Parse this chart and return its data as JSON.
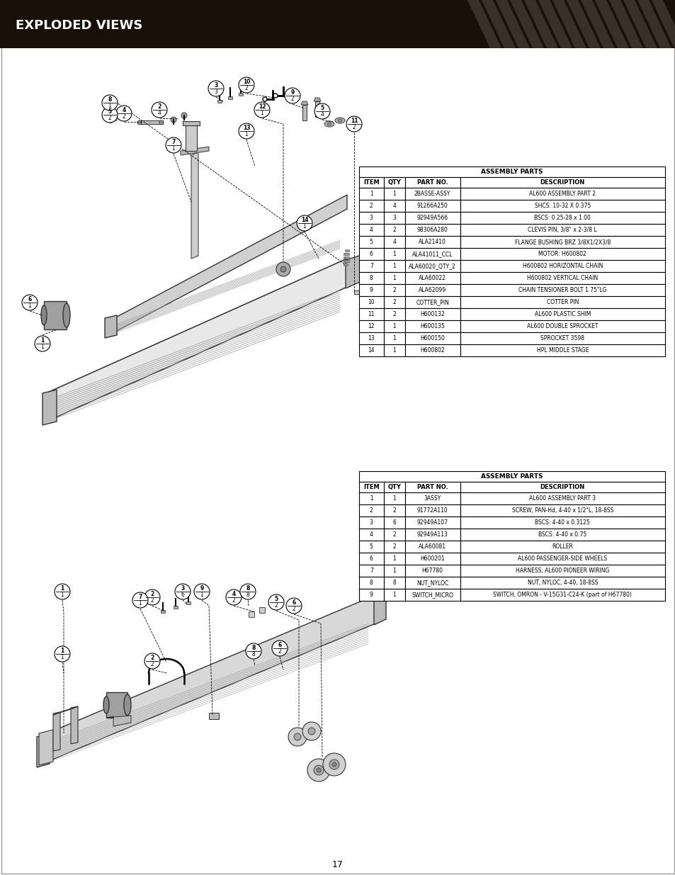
{
  "title": "EXPLODED VIEWS",
  "page_number": "17",
  "background_color": "#ffffff",
  "header_bg": "#1a1008",
  "header_text_color": "#ffffff",
  "table1_title": "ASSEMBLY PARTS",
  "table1_headers": [
    "ITEM",
    "QTY",
    "PART NO.",
    "DESCRIPTION"
  ],
  "table1_rows": [
    [
      "1",
      "1",
      "2BASSE-ASSY",
      "AL600 ASSEMBLY PART 2"
    ],
    [
      "2",
      "4",
      "91266A250",
      "SHCS: 10-32 X 0.375"
    ],
    [
      "3",
      "3",
      "92949A566",
      "BSCS: 0.25-28 x 1.00"
    ],
    [
      "4",
      "2",
      "98306A280",
      "CLEVIS PIN, 3/8\" x 2-3/8 L"
    ],
    [
      "5",
      "4",
      "ALA21410",
      "FLANGE BUSHING BRZ 3/8X1/2X3/8"
    ],
    [
      "6",
      "1",
      "ALA41011_CCL",
      "MOTOR: H600802"
    ],
    [
      "7",
      "1",
      "ALA60020_QTY_2",
      "H600802 HORIZONTAL CHAIN"
    ],
    [
      "8",
      "1",
      "ALA60022",
      "H600802 VERTICAL CHAIN"
    ],
    [
      "9",
      "2",
      "ALA62099",
      "CHAIN TENSIONER BOLT 1.75\"LG"
    ],
    [
      "10",
      "2",
      "COTTER_PIN",
      "COTTER PIN"
    ],
    [
      "11",
      "2",
      "H600132",
      "AL600 PLASTIC SHIM"
    ],
    [
      "12",
      "1",
      "H600135",
      "AL600 DOUBLE SPROCKET"
    ],
    [
      "13",
      "1",
      "H600150",
      "SPROCKET 3598"
    ],
    [
      "14",
      "1",
      "H600802",
      "HPL MIDDLE STAGE"
    ]
  ],
  "table2_title": "ASSEMBLY PARTS",
  "table2_headers": [
    "ITEM",
    "QTY",
    "PART NO.",
    "DESCRIPTION"
  ],
  "table2_rows": [
    [
      "1",
      "1",
      "3ASSY",
      "AL600 ASSEMBLY PART 3"
    ],
    [
      "2",
      "2",
      "91772A110",
      "SCREW, PAN-Hd, 4-40 x 1/2\"L, 18-8SS"
    ],
    [
      "3",
      "6",
      "92949A107",
      "BSCS: 4-40 x 0.3125"
    ],
    [
      "4",
      "2",
      "92949A113",
      "BSCS: 4-40 x 0.75"
    ],
    [
      "5",
      "2",
      "ALA60081",
      "ROLLER"
    ],
    [
      "6",
      "1",
      "H600201",
      "AL600 PASSENGER-SIDE WHEELS"
    ],
    [
      "7",
      "1",
      "H67780",
      "HARNESS, AL600 PIONEER WIRING"
    ],
    [
      "8",
      "8",
      "NUT_NYLOC",
      "NUT, NYLOC, 4-40, 18-8SS"
    ],
    [
      "9",
      "1",
      "SWITCH_MICRO",
      "SWITCH, OMRON - V-15G31-C24-K (part of H67780)"
    ]
  ]
}
